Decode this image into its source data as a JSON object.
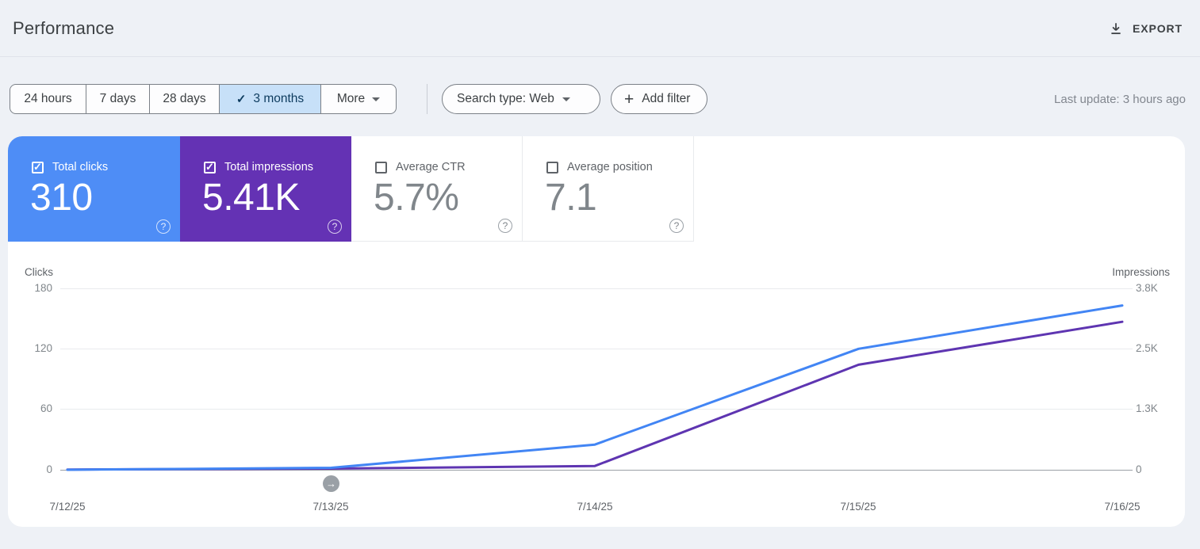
{
  "colors": {
    "page_bg": "#eef1f6",
    "clicks_card": "#4e8df6",
    "impressions_card": "#6432b4",
    "clicks_line": "#4285f4",
    "impressions_line": "#5e35b1",
    "selected_range_bg": "#c7e0f8",
    "selected_range_text": "#0d3b5e"
  },
  "icons": {
    "download": "download-icon",
    "checkmark": "✓",
    "plus": "+",
    "help": "?",
    "dropdown_caret": "caret-down",
    "annotation_arrow": "→"
  },
  "header": {
    "title": "Performance",
    "export_label": "EXPORT"
  },
  "toolbar": {
    "date_ranges": [
      {
        "label": "24 hours",
        "selected": false
      },
      {
        "label": "7 days",
        "selected": false
      },
      {
        "label": "28 days",
        "selected": false
      },
      {
        "label": "3 months",
        "selected": true
      },
      {
        "label": "More",
        "selected": false,
        "has_dropdown": true
      }
    ],
    "search_type_label": "Search type: Web",
    "add_filter_label": "Add filter",
    "last_update": "Last update: 3 hours ago"
  },
  "metric_cards": [
    {
      "label": "Total clicks",
      "value": "310",
      "selected": true,
      "color": "#4e8df6"
    },
    {
      "label": "Total impressions",
      "value": "5.41K",
      "selected": true,
      "color": "#6432b4"
    },
    {
      "label": "Average CTR",
      "value": "5.7%",
      "selected": false
    },
    {
      "label": "Average position",
      "value": "7.1",
      "selected": false
    }
  ],
  "chart_data": {
    "type": "line",
    "x": [
      "7/12/25",
      "7/13/25",
      "7/14/25",
      "7/15/25",
      "7/16/25"
    ],
    "series": [
      {
        "name": "Clicks",
        "axis": "left",
        "color": "#4285f4",
        "values": [
          0,
          2,
          25,
          120,
          163
        ]
      },
      {
        "name": "Impressions",
        "axis": "right",
        "color": "#5e35b1",
        "values": [
          5,
          25,
          80,
          2200,
          3100
        ]
      }
    ],
    "left_axis": {
      "label": "Clicks",
      "max": 180,
      "ticks": [
        "180",
        "120",
        "60",
        "0"
      ]
    },
    "right_axis": {
      "label": "Impressions",
      "max": 3800,
      "ticks": [
        "3.8K",
        "2.5K",
        "1.3K",
        "0"
      ]
    },
    "grid": true,
    "legend_position": "none",
    "annotation": {
      "icon": "arrow-right",
      "x_index": 1
    }
  }
}
